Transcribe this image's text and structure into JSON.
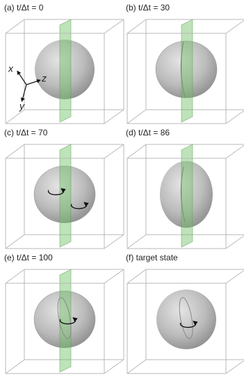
{
  "panels": [
    {
      "label": "(a) t/Δt = 0"
    },
    {
      "label": "(b) t/Δt = 30"
    },
    {
      "label": "(c) t/Δt = 70"
    },
    {
      "label": "(d) t/Δt = 86"
    },
    {
      "label": "(e) t/Δt = 100"
    },
    {
      "label": "(f) target state"
    }
  ],
  "axes": {
    "x": "x",
    "z": "z",
    "y": "y"
  }
}
